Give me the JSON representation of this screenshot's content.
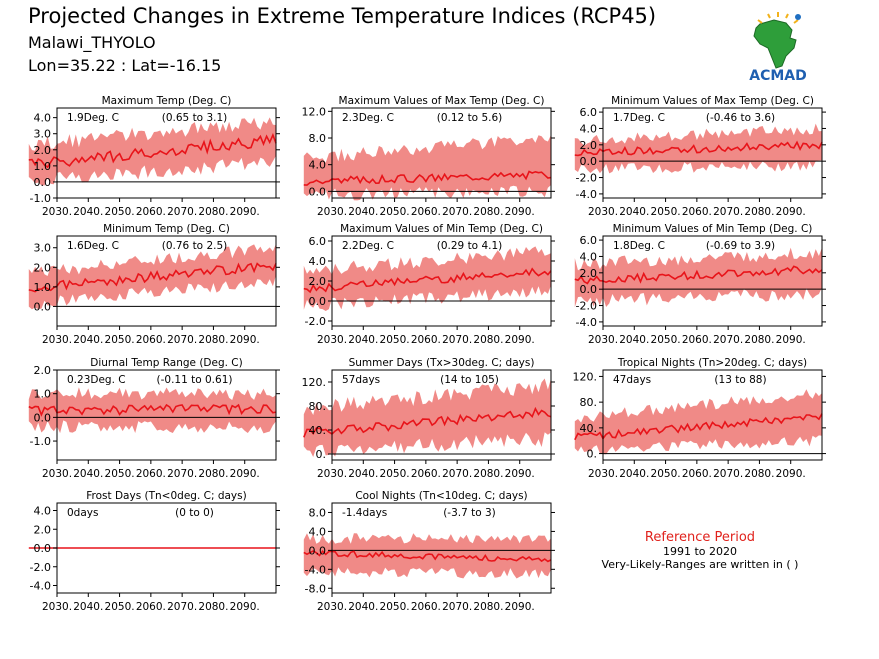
{
  "header": {
    "title": "Projected Changes in Extreme Temperature Indices (RCP45)",
    "location": "Malawi_THYOLO",
    "coords": "Lon=35.22 : Lat=-16.15"
  },
  "logo": {
    "text": "ACMAD",
    "icon": "africa-map-logo"
  },
  "reference": {
    "title": "Reference Period",
    "years": "1991 to 2020",
    "note": "Very-Likely-Ranges are written in ( )"
  },
  "colors": {
    "band": "#f08a87",
    "line": "#e8141a",
    "zero": "#000000"
  },
  "chart_data": [
    {
      "type": "line",
      "title": "Maximum Temp (Deg. C)",
      "change": "1.9Deg. C",
      "range": "(0.65 to 3.1)",
      "ylim": [
        -1,
        4.6
      ],
      "yticks": [
        -1,
        0,
        1,
        2,
        3,
        4
      ],
      "ytick_labels": [
        "-1.0",
        "0.0",
        "1.0",
        "2.0",
        "3.0",
        "4.0"
      ],
      "x": [
        2030,
        2100
      ],
      "xtick_labels": [
        "2030.",
        "2040.",
        "2050.",
        "2060.",
        "2070.",
        "2080.",
        "2090."
      ],
      "series": [
        {
          "values_start": 1.1,
          "values_end": 2.6,
          "noise": 0.35,
          "band_low_start": 0.1,
          "band_low_end": 1.2,
          "band_high_start": 2.3,
          "band_high_end": 3.8
        }
      ]
    },
    {
      "type": "line",
      "title": "Maximum Values of Max Temp (Deg. C)",
      "change": "2.3Deg. C",
      "range": "(0.12 to 5.6)",
      "ylim": [
        -1,
        12.5
      ],
      "yticks": [
        0,
        4,
        8,
        12
      ],
      "ytick_labels": [
        "0.0",
        "4.0",
        "8.0",
        "12.0"
      ],
      "x": [
        2030,
        2100
      ],
      "xtick_labels": [
        "2030.",
        "2040.",
        "2050.",
        "2060.",
        "2070.",
        "2080.",
        "2090."
      ],
      "series": [
        {
          "values_start": 1.5,
          "values_end": 2.6,
          "noise": 0.6,
          "band_low_start": -0.5,
          "band_low_end": 0.0,
          "band_high_start": 5.0,
          "band_high_end": 8.0
        }
      ]
    },
    {
      "type": "line",
      "title": "Minimum Values of Max Temp (Deg. C)",
      "change": "1.7Deg. C",
      "range": "(-0.46 to 3.6)",
      "ylim": [
        -4.5,
        6.5
      ],
      "yticks": [
        -4,
        -2,
        0,
        2,
        4,
        6
      ],
      "ytick_labels": [
        "-4.0",
        "-2.0",
        "0.0",
        "2.0",
        "4.0",
        "6.0"
      ],
      "x": [
        2030,
        2100
      ],
      "xtick_labels": [
        "2030.",
        "2040.",
        "2050.",
        "2060.",
        "2070.",
        "2080.",
        "2090."
      ],
      "series": [
        {
          "values_start": 1.0,
          "values_end": 2.0,
          "noise": 0.45,
          "band_low_start": -1.0,
          "band_low_end": -0.5,
          "band_high_start": 2.5,
          "band_high_end": 4.0
        }
      ]
    },
    {
      "type": "line",
      "title": "Minimum Temp (Deg. C)",
      "change": "1.6Deg. C",
      "range": "(0.76 to 2.5)",
      "ylim": [
        -1,
        3.6
      ],
      "yticks": [
        0,
        1,
        2,
        3
      ],
      "ytick_labels": [
        "0.0",
        "1.0",
        "2.0",
        "3.0"
      ],
      "x": [
        2030,
        2100
      ],
      "xtick_labels": [
        "2030.",
        "2040.",
        "2050.",
        "2060.",
        "2070.",
        "2080.",
        "2090."
      ],
      "series": [
        {
          "values_start": 0.9,
          "values_end": 2.1,
          "noise": 0.25,
          "band_low_start": 0.1,
          "band_low_end": 1.3,
          "band_high_start": 1.7,
          "band_high_end": 3.0
        }
      ]
    },
    {
      "type": "line",
      "title": "Maximum Values of Min Temp (Deg. C)",
      "change": "2.2Deg. C",
      "range": "(0.29 to 4.1)",
      "ylim": [
        -2.5,
        6.5
      ],
      "yticks": [
        -2,
        0,
        2,
        4,
        6
      ],
      "ytick_labels": [
        "-2.0",
        "0.0",
        "2.0",
        "4.0",
        "6.0"
      ],
      "x": [
        2030,
        2100
      ],
      "xtick_labels": [
        "2030.",
        "2040.",
        "2050.",
        "2060.",
        "2070.",
        "2080.",
        "2090."
      ],
      "series": [
        {
          "values_start": 1.2,
          "values_end": 3.0,
          "noise": 0.4,
          "band_low_start": -0.5,
          "band_low_end": 1.0,
          "band_high_start": 3.0,
          "band_high_end": 5.0
        }
      ]
    },
    {
      "type": "line",
      "title": "Minimum Values of Min Temp (Deg. C)",
      "change": "1.8Deg. C",
      "range": "(-0.69 to 3.9)",
      "ylim": [
        -4.5,
        6.5
      ],
      "yticks": [
        -4,
        -2,
        0,
        2,
        4,
        6
      ],
      "ytick_labels": [
        "-4.0",
        "-2.0",
        "0.0",
        "2.0",
        "4.0",
        "6.0"
      ],
      "x": [
        2030,
        2100
      ],
      "xtick_labels": [
        "2030.",
        "2040.",
        "2050.",
        "2060.",
        "2070.",
        "2080.",
        "2090."
      ],
      "series": [
        {
          "values_start": 1.0,
          "values_end": 2.5,
          "noise": 0.5,
          "band_low_start": -1.5,
          "band_low_end": -0.5,
          "band_high_start": 3.0,
          "band_high_end": 4.5
        }
      ]
    },
    {
      "type": "line",
      "title": "Diurnal Temp Range (Deg. C)",
      "change": "0.23Deg. C",
      "range": "(-0.11 to 0.61)",
      "ylim": [
        -1.8,
        2.0
      ],
      "yticks": [
        -1,
        0,
        1,
        2
      ],
      "ytick_labels": [
        "-1.0",
        "0.0",
        "1.0",
        "2.0"
      ],
      "x": [
        2030,
        2100
      ],
      "xtick_labels": [
        "2030.",
        "2040.",
        "2050.",
        "2060.",
        "2070.",
        "2080.",
        "2090."
      ],
      "series": [
        {
          "values_start": 0.3,
          "values_end": 0.35,
          "noise": 0.2,
          "band_low_start": -0.4,
          "band_low_end": -0.4,
          "band_high_start": 1.0,
          "band_high_end": 1.0
        }
      ]
    },
    {
      "type": "line",
      "title": "Summer Days (Tx>30deg. C; days)",
      "change": "57days",
      "range": "(14 to 105)",
      "ylim": [
        -10,
        140
      ],
      "yticks": [
        0,
        40,
        80,
        120
      ],
      "ytick_labels": [
        "0.",
        "40.",
        "80.",
        "120."
      ],
      "x": [
        2030,
        2100
      ],
      "xtick_labels": [
        "2030.",
        "2040.",
        "2050.",
        "2060.",
        "2070.",
        "2080.",
        "2090."
      ],
      "series": [
        {
          "values_start": 35,
          "values_end": 70,
          "noise": 8,
          "band_low_start": 5,
          "band_low_end": 25,
          "band_high_start": 75,
          "band_high_end": 115
        }
      ]
    },
    {
      "type": "line",
      "title": "Tropical Nights (Tn>20deg. C; days)",
      "change": "47days",
      "range": "(13 to 88)",
      "ylim": [
        -10,
        130
      ],
      "yticks": [
        0,
        40,
        80,
        120
      ],
      "ytick_labels": [
        "0.",
        "40.",
        "80.",
        "120."
      ],
      "x": [
        2030,
        2100
      ],
      "xtick_labels": [
        "2030.",
        "2040.",
        "2050.",
        "2060.",
        "2070.",
        "2080.",
        "2090."
      ],
      "series": [
        {
          "values_start": 25,
          "values_end": 58,
          "noise": 6,
          "band_low_start": 5,
          "band_low_end": 20,
          "band_high_start": 55,
          "band_high_end": 95
        }
      ]
    },
    {
      "type": "line",
      "title": "Frost Days (Tn<0deg. C; days)",
      "change": "0days",
      "range": "(0 to 0)",
      "ylim": [
        -4.8,
        4.8
      ],
      "yticks": [
        -4,
        -2,
        0,
        2,
        4
      ],
      "ytick_labels": [
        "-4.0",
        "-2.0",
        "0.0",
        "2.0",
        "4.0"
      ],
      "x": [
        2030,
        2100
      ],
      "xtick_labels": [
        "2030.",
        "2040.",
        "2050.",
        "2060.",
        "2070.",
        "2080.",
        "2090."
      ],
      "series": [
        {
          "values_start": 0,
          "values_end": 0,
          "noise": 0,
          "band_low_start": 0,
          "band_low_end": 0,
          "band_high_start": 0,
          "band_high_end": 0
        }
      ]
    },
    {
      "type": "line",
      "title": "Cool Nights (Tn<10deg. C; days)",
      "change": "-1.4days",
      "range": "(-3.7 to 3)",
      "ylim": [
        -9,
        10
      ],
      "yticks": [
        -8,
        -4,
        0,
        4,
        8
      ],
      "ytick_labels": [
        "-8.0",
        "-4.0",
        "0.0",
        "4.0",
        "8.0"
      ],
      "x": [
        2030,
        2100
      ],
      "xtick_labels": [
        "2030.",
        "2040.",
        "2050.",
        "2060.",
        "2070.",
        "2080.",
        "2090."
      ],
      "series": [
        {
          "values_start": -0.5,
          "values_end": -2.0,
          "noise": 0.6,
          "band_low_start": -4.5,
          "band_low_end": -5.0,
          "band_high_start": 2.5,
          "band_high_end": 2.5
        }
      ]
    }
  ]
}
